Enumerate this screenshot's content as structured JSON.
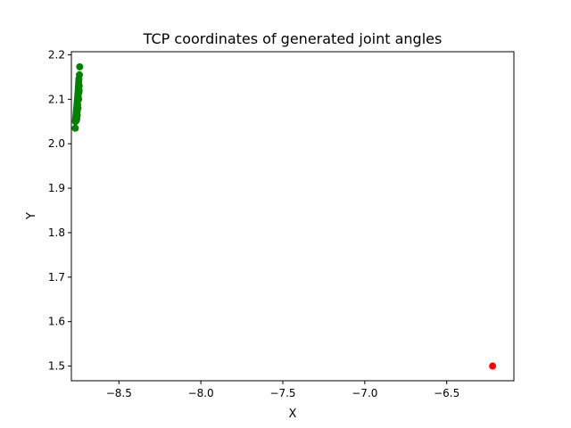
{
  "chart_data": {
    "type": "scatter",
    "title": "TCP coordinates of generated joint angles",
    "xlabel": "X",
    "ylabel": "Y",
    "xlim": [
      -8.79,
      -6.09
    ],
    "ylim": [
      1.467,
      2.207
    ],
    "xticks": [
      -8.5,
      -8.0,
      -7.5,
      -7.0,
      -6.5
    ],
    "xtick_labels": [
      "−8.5",
      "−8.0",
      "−7.5",
      "−7.0",
      "−6.5"
    ],
    "yticks": [
      1.5,
      1.6,
      1.7,
      1.8,
      1.9,
      2.0,
      2.1,
      2.2
    ],
    "ytick_labels": [
      "1.5",
      "1.6",
      "1.7",
      "1.8",
      "1.9",
      "2.0",
      "2.1",
      "2.2"
    ],
    "grid": false,
    "series": [
      {
        "color": "#008000",
        "points": [
          [
            -8.739,
            2.173
          ],
          [
            -8.741,
            2.155
          ],
          [
            -8.744,
            2.146
          ],
          [
            -8.745,
            2.14
          ],
          [
            -8.746,
            2.134
          ],
          [
            -8.747,
            2.128
          ],
          [
            -8.748,
            2.122
          ],
          [
            -8.749,
            2.117
          ],
          [
            -8.75,
            2.112
          ],
          [
            -8.751,
            2.107
          ],
          [
            -8.752,
            2.102
          ],
          [
            -8.753,
            2.098
          ],
          [
            -8.754,
            2.094
          ],
          [
            -8.755,
            2.09
          ],
          [
            -8.756,
            2.086
          ],
          [
            -8.757,
            2.082
          ],
          [
            -8.758,
            2.078
          ],
          [
            -8.759,
            2.074
          ],
          [
            -8.76,
            2.07
          ],
          [
            -8.761,
            2.066
          ],
          [
            -8.762,
            2.062
          ],
          [
            -8.763,
            2.058
          ],
          [
            -8.764,
            2.054
          ],
          [
            -8.765,
            2.05
          ],
          [
            -8.748,
            2.105
          ],
          [
            -8.752,
            2.088
          ],
          [
            -8.755,
            2.072
          ],
          [
            -8.758,
            2.06
          ],
          [
            -8.76,
            2.052
          ],
          [
            -8.743,
            2.12
          ],
          [
            -8.746,
            2.1
          ],
          [
            -8.75,
            2.08
          ],
          [
            -8.754,
            2.064
          ],
          [
            -8.757,
            2.056
          ],
          [
            -8.742,
            2.13
          ],
          [
            -8.744,
            2.115
          ],
          [
            -8.766,
            2.035
          ]
        ]
      },
      {
        "color": "#ff0000",
        "points": [
          [
            -6.22,
            1.5
          ]
        ]
      }
    ]
  }
}
